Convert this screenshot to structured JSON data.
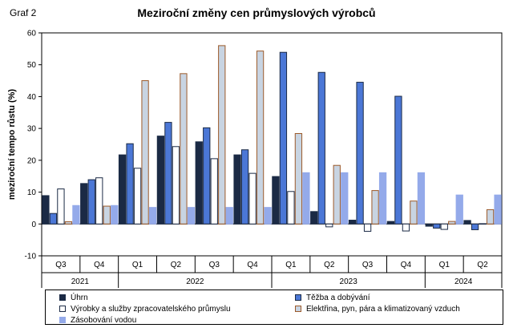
{
  "graf_label": "Graf 2",
  "chart_data": {
    "type": "bar",
    "title": "Meziroční změny cen průmyslových výrobců",
    "xlabel": "",
    "ylabel": "meziroční tempo růstu (%)",
    "ylim": [
      -10,
      60
    ],
    "yticks": [
      -10,
      0,
      10,
      20,
      30,
      40,
      50,
      60
    ],
    "grid": false,
    "legend_position": "bottom",
    "categories": [
      "Q3",
      "Q4",
      "Q1",
      "Q2",
      "Q3",
      "Q4",
      "Q1",
      "Q2",
      "Q3",
      "Q4",
      "Q1",
      "Q2"
    ],
    "years": [
      {
        "label": "2021",
        "span": 2
      },
      {
        "label": "2022",
        "span": 4
      },
      {
        "label": "2023",
        "span": 4
      },
      {
        "label": "2024",
        "span": 2
      }
    ],
    "series": [
      {
        "name": "Úhrn",
        "color": "#1b2a45",
        "border": "#1b2a45",
        "values": [
          8.9,
          12.7,
          21.7,
          27.6,
          25.8,
          21.7,
          14.9,
          3.9,
          1.2,
          0.8,
          -0.7,
          1.1
        ]
      },
      {
        "name": "Těžba a dobývání",
        "color": "#4b77d6",
        "border": "#1b2a45",
        "values": [
          3.3,
          13.9,
          25.2,
          31.9,
          30.2,
          23.3,
          53.9,
          47.6,
          44.5,
          40.1,
          -1.3,
          -1.8
        ]
      },
      {
        "name": "Výrobky a služby zpracovatelského průmyslu",
        "color": "#ffffff",
        "border": "#1b2a45",
        "values": [
          11.0,
          14.5,
          17.5,
          24.3,
          20.5,
          15.9,
          10.2,
          -0.9,
          -2.3,
          -2.2,
          -1.7,
          0.1
        ]
      },
      {
        "name": "Elektřina, pyn, pára a klimatizovaný vzduch",
        "color": "#c8d4e2",
        "border": "#9c5a2a",
        "values": [
          0.7,
          5.6,
          45.0,
          47.2,
          56.0,
          54.3,
          28.4,
          18.4,
          10.5,
          7.2,
          0.8,
          4.5
        ]
      },
      {
        "name": "Zásobování vodou",
        "color": "#94aaea",
        "border": "#94aaea",
        "values": [
          5.8,
          5.8,
          5.2,
          5.2,
          5.2,
          5.2,
          16.1,
          16.1,
          16.1,
          16.1,
          9.1,
          9.1
        ]
      }
    ]
  }
}
